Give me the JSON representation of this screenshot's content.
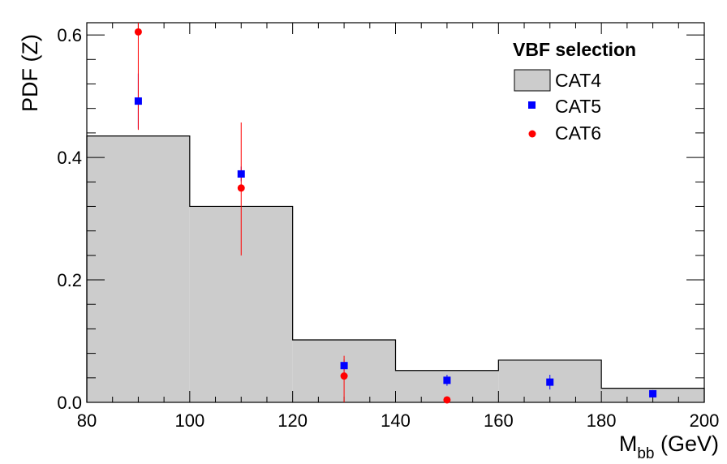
{
  "chart_data": {
    "type": "bar",
    "title": "",
    "xlabel_main": "M",
    "xlabel_sub": "bb",
    "xlabel_unit": " (GeV)",
    "ylabel": "PDF (Z)",
    "xlim": [
      80,
      200
    ],
    "ylim": [
      0,
      0.62
    ],
    "x_ticks": [
      "80",
      "100",
      "120",
      "140",
      "160",
      "180",
      "200"
    ],
    "y_ticks": [
      "0.0",
      "0.2",
      "0.4",
      "0.6"
    ],
    "x_tick_values": [
      80,
      100,
      120,
      140,
      160,
      180,
      200
    ],
    "y_tick_values": [
      0,
      0.2,
      0.4,
      0.6
    ],
    "legend": {
      "title": "VBF selection",
      "position": "top-right",
      "entries": [
        "CAT4",
        "CAT5",
        "CAT6"
      ]
    },
    "colors": {
      "cat4_fill": "#cccccc",
      "cat5": "#0000ff",
      "cat6": "#ff0000"
    },
    "series": [
      {
        "name": "CAT4",
        "style": "histogram",
        "bin_edges": [
          80,
          100,
          120,
          140,
          160,
          180,
          200
        ],
        "values": [
          0.435,
          0.32,
          0.102,
          0.052,
          0.069,
          0.023
        ]
      },
      {
        "name": "CAT5",
        "style": "square-markers",
        "x": [
          90,
          110,
          130,
          150,
          170,
          190
        ],
        "y": [
          0.492,
          0.373,
          0.06,
          0.036,
          0.033,
          0.014
        ],
        "yerr_low": [
          0.045,
          0.012,
          0.01,
          0.009,
          0.012,
          0.006
        ],
        "yerr_high": [
          0.045,
          0.012,
          0.01,
          0.009,
          0.012,
          0.006
        ]
      },
      {
        "name": "CAT6",
        "style": "circle-markers",
        "x": [
          90,
          110,
          130,
          150
        ],
        "y": [
          0.605,
          0.35,
          0.043,
          0.004
        ],
        "yerr_low": [
          0.16,
          0.11,
          0.043,
          0.0
        ],
        "yerr_high": [
          0.16,
          0.107,
          0.033,
          0.0
        ]
      }
    ]
  }
}
